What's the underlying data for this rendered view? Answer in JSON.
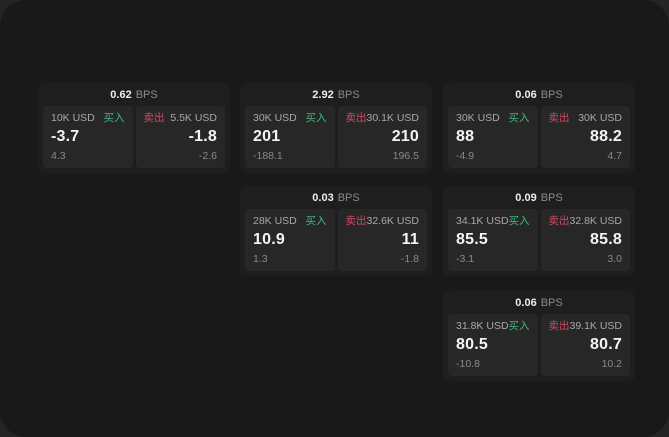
{
  "labels": {
    "bps_unit": "BPS",
    "buy": "买入",
    "sell": "卖出"
  },
  "colors": {
    "buy": "#40b97c",
    "sell": "#cf4a64",
    "surface": "#191919",
    "card": "#1e1e1e",
    "tile": "#272727"
  },
  "cards": [
    {
      "bps": "0.62",
      "buy": {
        "notional": "10K USD",
        "price": "-3.7",
        "delta": "4.3"
      },
      "sell": {
        "notional": "5.5K USD",
        "price": "-1.8",
        "delta": "-2.6"
      }
    },
    {
      "bps": "2.92",
      "buy": {
        "notional": "30K USD",
        "price": "201",
        "delta": "-188.1"
      },
      "sell": {
        "notional": "30.1K USD",
        "price": "210",
        "delta": "196.5"
      }
    },
    {
      "bps": "0.06",
      "buy": {
        "notional": "30K USD",
        "price": "88",
        "delta": "-4.9"
      },
      "sell": {
        "notional": "30K USD",
        "price": "88.2",
        "delta": "4.7"
      }
    },
    {
      "bps": "0.03",
      "buy": {
        "notional": "28K USD",
        "price": "10.9",
        "delta": "1.3"
      },
      "sell": {
        "notional": "32.6K USD",
        "price": "11",
        "delta": "-1.8"
      }
    },
    {
      "bps": "0.09",
      "buy": {
        "notional": "34.1K USD",
        "price": "85.5",
        "delta": "-3.1"
      },
      "sell": {
        "notional": "32.8K USD",
        "price": "85.8",
        "delta": "3.0"
      }
    },
    {
      "bps": "0.06",
      "buy": {
        "notional": "31.8K USD",
        "price": "80.5",
        "delta": "-10.8"
      },
      "sell": {
        "notional": "39.1K USD",
        "price": "80.7",
        "delta": "10.2"
      }
    }
  ]
}
